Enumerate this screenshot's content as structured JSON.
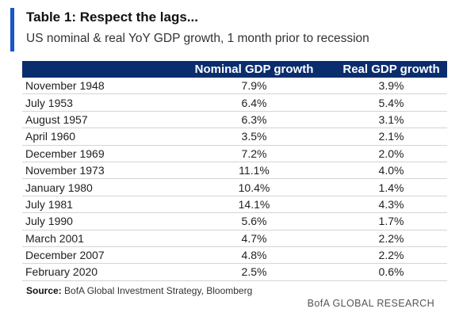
{
  "header": {
    "title": "Table 1: Respect the lags...",
    "subtitle": "US nominal & real YoY GDP growth, 1 month prior to recession",
    "accent_color": "#1a56c8"
  },
  "table": {
    "header_color": "#0a2d6e",
    "columns": [
      "",
      "Nominal GDP growth",
      "Real GDP growth"
    ],
    "rows": [
      {
        "date": "November 1948",
        "nominal": "7.9%",
        "real": "3.9%"
      },
      {
        "date": "July 1953",
        "nominal": "6.4%",
        "real": "5.4%"
      },
      {
        "date": "August 1957",
        "nominal": "6.3%",
        "real": "3.1%"
      },
      {
        "date": "April 1960",
        "nominal": "3.5%",
        "real": "2.1%"
      },
      {
        "date": "December 1969",
        "nominal": "7.2%",
        "real": "2.0%"
      },
      {
        "date": "November 1973",
        "nominal": "11.1%",
        "real": "4.0%"
      },
      {
        "date": "January 1980",
        "nominal": "10.4%",
        "real": "1.4%"
      },
      {
        "date": "July 1981",
        "nominal": "14.1%",
        "real": "4.3%"
      },
      {
        "date": "July 1990",
        "nominal": "5.6%",
        "real": "1.7%"
      },
      {
        "date": "March 2001",
        "nominal": "4.7%",
        "real": "2.2%"
      },
      {
        "date": "December 2007",
        "nominal": "4.8%",
        "real": "2.2%"
      },
      {
        "date": "February 2020",
        "nominal": "2.5%",
        "real": "0.6%"
      }
    ]
  },
  "footer": {
    "source_label": "Source:",
    "source_text": "BofA Global Investment Strategy, Bloomberg",
    "brand": "BofA GLOBAL RESEARCH"
  }
}
